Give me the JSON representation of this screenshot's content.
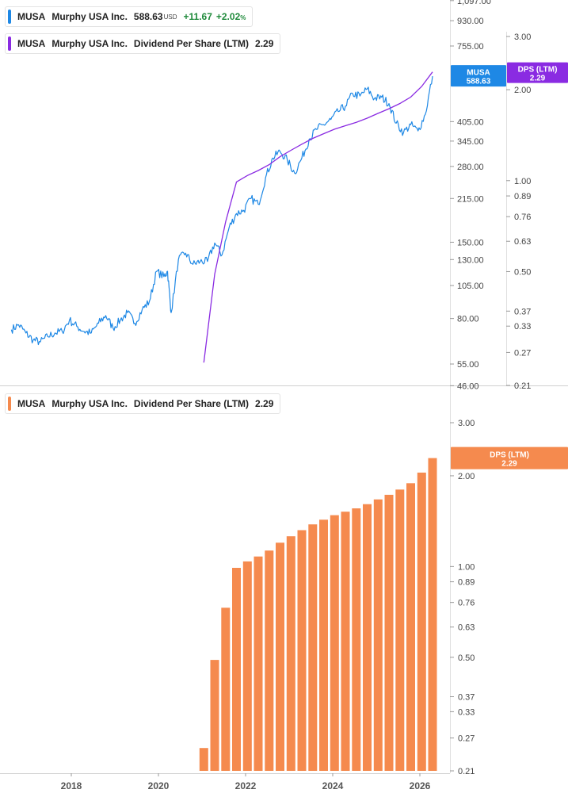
{
  "legends": {
    "price": {
      "ticker": "MUSA",
      "company": "Murphy USA Inc.",
      "price": "588.63",
      "currency": "USD",
      "change": "+11.67",
      "change_pct": "+2.02",
      "pct_sign": "%",
      "color": "#1e88e5"
    },
    "dps_top": {
      "ticker": "MUSA",
      "company": "Murphy USA Inc.",
      "metric": "Dividend Per Share (LTM)",
      "value": "2.29",
      "color": "#8a2be2"
    },
    "dps_bottom": {
      "ticker": "MUSA",
      "company": "Murphy USA Inc.",
      "metric": "Dividend Per Share (LTM)",
      "value": "2.29",
      "color": "#f58a4e"
    }
  },
  "badges": {
    "price": {
      "line1": "MUSA",
      "line2": "588.63",
      "color": "#1e88e5"
    },
    "dps_top": {
      "line1": "DPS (LTM)",
      "line2": "2.29",
      "color": "#8a2be2"
    },
    "dps_bottom": {
      "line1": "DPS (LTM)",
      "line2": "2.29",
      "color": "#f58a4e"
    }
  },
  "chart_data": [
    {
      "type": "line",
      "scale": "log",
      "series": [
        {
          "name": "MUSA",
          "color": "#1e88e5",
          "axis": "left",
          "x": [
            "2016-08",
            "2016-10",
            "2016-12",
            "2017-02",
            "2017-04",
            "2017-06",
            "2017-08",
            "2017-10",
            "2017-12",
            "2018-02",
            "2018-04",
            "2018-06",
            "2018-08",
            "2018-10",
            "2018-12",
            "2019-02",
            "2019-04",
            "2019-06",
            "2019-08",
            "2019-10",
            "2019-12",
            "2020-02",
            "2020-03",
            "2020-04",
            "2020-06",
            "2020-08",
            "2020-10",
            "2020-12",
            "2021-02",
            "2021-04",
            "2021-06",
            "2021-08",
            "2021-10",
            "2021-12",
            "2022-02",
            "2022-04",
            "2022-06",
            "2022-08",
            "2022-10",
            "2022-12",
            "2023-02",
            "2023-04",
            "2023-06",
            "2023-08",
            "2023-10",
            "2023-12",
            "2024-02",
            "2024-04",
            "2024-06",
            "2024-08",
            "2024-10",
            "2024-12",
            "2025-02",
            "2025-04",
            "2025-06",
            "2025-08",
            "2025-10",
            "2025-12",
            "2026-02",
            "2026-04"
          ],
          "values": [
            73,
            76,
            71,
            67,
            66,
            69,
            71,
            72,
            79,
            75,
            72,
            71,
            77,
            82,
            74,
            79,
            84,
            77,
            86,
            92,
            118,
            113,
            118,
            84,
            130,
            137,
            125,
            128,
            128,
            149,
            135,
            170,
            190,
            195,
            215,
            205,
            255,
            300,
            317,
            295,
            265,
            300,
            350,
            380,
            395,
            412,
            440,
            460,
            510,
            500,
            530,
            490,
            495,
            470,
            400,
            370,
            395,
            375,
            430,
            588.63
          ]
        },
        {
          "name": "Dividend Per Share (LTM)",
          "color": "#8a2be2",
          "axis": "right",
          "x": [
            "2021-01",
            "2021-04",
            "2021-07",
            "2021-10",
            "2022-01",
            "2022-04",
            "2022-07",
            "2022-10",
            "2023-01",
            "2023-04",
            "2023-07",
            "2023-10",
            "2024-01",
            "2024-04",
            "2024-07",
            "2024-10",
            "2025-01",
            "2025-04",
            "2025-07",
            "2025-10",
            "2026-01",
            "2026-04"
          ],
          "values": [
            0.25,
            0.49,
            0.73,
            0.99,
            1.04,
            1.08,
            1.13,
            1.2,
            1.26,
            1.32,
            1.38,
            1.43,
            1.48,
            1.52,
            1.56,
            1.61,
            1.67,
            1.73,
            1.8,
            1.89,
            2.05,
            2.29
          ]
        }
      ],
      "left_axis": {
        "ticks": [
          "1,097.00",
          "930.00",
          "755.00",
          "405.00",
          "345.00",
          "280.00",
          "215.00",
          "150.00",
          "130.00",
          "105.00",
          "80.00",
          "55.00",
          "46.00"
        ],
        "range": [
          46,
          1097
        ]
      },
      "right_axis": {
        "ticks": [
          "3.00",
          "2.00",
          "1.00",
          "0.89",
          "0.76",
          "0.63",
          "0.50",
          "0.37",
          "0.33",
          "0.27",
          "0.21"
        ],
        "range": [
          0.21,
          4.0
        ]
      }
    },
    {
      "type": "bar",
      "scale": "log",
      "series": [
        {
          "name": "Dividend Per Share (LTM)",
          "color": "#f58a4e",
          "x": [
            "2021-01",
            "2021-04",
            "2021-07",
            "2021-10",
            "2022-01",
            "2022-04",
            "2022-07",
            "2022-10",
            "2023-01",
            "2023-04",
            "2023-07",
            "2023-10",
            "2024-01",
            "2024-04",
            "2024-07",
            "2024-10",
            "2025-01",
            "2025-04",
            "2025-07",
            "2025-10",
            "2026-01",
            "2026-04"
          ],
          "values": [
            0.25,
            0.49,
            0.73,
            0.99,
            1.04,
            1.08,
            1.13,
            1.2,
            1.26,
            1.32,
            1.38,
            1.43,
            1.48,
            1.52,
            1.56,
            1.61,
            1.67,
            1.73,
            1.8,
            1.89,
            2.05,
            2.29
          ]
        }
      ],
      "right_axis": {
        "ticks": [
          "3.00",
          "2.00",
          "1.00",
          "0.89",
          "0.76",
          "0.63",
          "0.50",
          "0.37",
          "0.33",
          "0.27",
          "0.21"
        ],
        "range": [
          0.21,
          4.0
        ]
      },
      "x_axis": {
        "ticks": [
          "2018",
          "2020",
          "2022",
          "2024",
          "2026"
        ]
      }
    }
  ]
}
